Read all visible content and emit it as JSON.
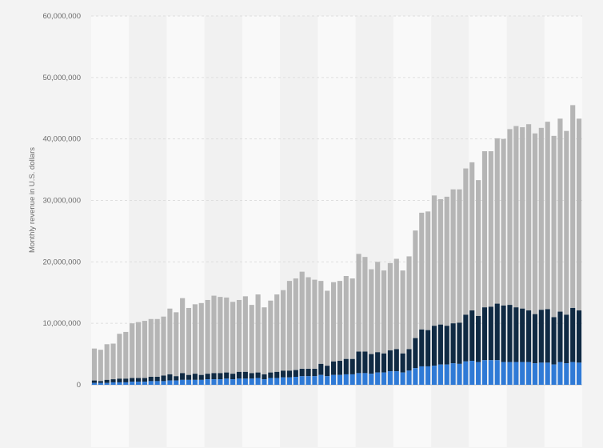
{
  "chart_data": {
    "type": "bar",
    "stacked": true,
    "ylabel": "Monthly revenue in U.S. dollars",
    "xlabel": "",
    "ylim": [
      0,
      60000000
    ],
    "yticks": [
      0,
      10000000,
      20000000,
      30000000,
      40000000,
      50000000,
      60000000
    ],
    "ytick_labels": [
      "0",
      "10,000,000",
      "20,000,000",
      "30,000,000",
      "40,000,000",
      "50,000,000",
      "60,000,000"
    ],
    "grid": true,
    "legend": "none",
    "colors": {
      "bottom": "#2f7ad6",
      "middle": "#102a43",
      "top": "#b5b5b5"
    },
    "totals": [
      5900000,
      5700000,
      6600000,
      6700000,
      8300000,
      8600000,
      10000000,
      10200000,
      10400000,
      10700000,
      10700000,
      11100000,
      12400000,
      11800000,
      14100000,
      12500000,
      13100000,
      13300000,
      13800000,
      14500000,
      14300000,
      14200000,
      13500000,
      13800000,
      14400000,
      13000000,
      14700000,
      12600000,
      13700000,
      14700000,
      15400000,
      16900000,
      17300000,
      18400000,
      17500000,
      17100000,
      16900000,
      15300000,
      16700000,
      16900000,
      17700000,
      17300000,
      21300000,
      20800000,
      18800000,
      20000000,
      18600000,
      19800000,
      20500000,
      18600000,
      20900000,
      25100000,
      28000000,
      28200000,
      30800000,
      30200000,
      30600000,
      31800000,
      31800000,
      35200000,
      36200000,
      33300000,
      38000000,
      38000000,
      40100000,
      40000000,
      41600000,
      42100000,
      41900000,
      42400000,
      40900000,
      41800000,
      42800000,
      40500000,
      43300000,
      41300000,
      45500000,
      43300000
    ],
    "middle_tops": [
      700000,
      600000,
      800000,
      900000,
      1000000,
      1000000,
      1100000,
      1100000,
      1100000,
      1300000,
      1300000,
      1500000,
      1700000,
      1400000,
      1900000,
      1600000,
      1800000,
      1600000,
      1800000,
      1900000,
      1900000,
      2000000,
      1800000,
      2100000,
      2100000,
      1900000,
      2000000,
      1700000,
      2000000,
      2100000,
      2300000,
      2300000,
      2400000,
      2600000,
      2600000,
      2600000,
      3400000,
      3100000,
      3800000,
      3900000,
      4200000,
      4200000,
      5400000,
      5400000,
      5000000,
      5300000,
      5100000,
      5600000,
      5800000,
      5100000,
      5800000,
      7600000,
      9000000,
      8900000,
      9600000,
      9800000,
      9600000,
      10000000,
      10100000,
      11400000,
      12100000,
      11200000,
      12600000,
      12700000,
      13200000,
      12900000,
      13000000,
      12600000,
      12400000,
      12100000,
      11500000,
      12200000,
      12300000,
      11000000,
      11900000,
      11400000,
      12500000,
      12100000
    ],
    "bottom_values": [
      300000,
      300000,
      300000,
      400000,
      400000,
      400000,
      500000,
      500000,
      500000,
      600000,
      600000,
      600000,
      700000,
      700000,
      800000,
      800000,
      800000,
      800000,
      900000,
      900000,
      900000,
      1000000,
      900000,
      1000000,
      1000000,
      1000000,
      1100000,
      900000,
      1100000,
      1100000,
      1200000,
      1200000,
      1300000,
      1400000,
      1400000,
      1400000,
      1600000,
      1400000,
      1600000,
      1600000,
      1700000,
      1700000,
      1900000,
      1900000,
      1800000,
      2000000,
      2000000,
      2200000,
      2200000,
      2000000,
      2300000,
      2700000,
      3000000,
      3000000,
      3100000,
      3300000,
      3300000,
      3500000,
      3400000,
      3800000,
      3900000,
      3700000,
      4000000,
      4000000,
      4000000,
      3700000,
      3700000,
      3700000,
      3700000,
      3700000,
      3500000,
      3600000,
      3600000,
      3300000,
      3700000,
      3500000,
      3700000,
      3600000
    ]
  }
}
